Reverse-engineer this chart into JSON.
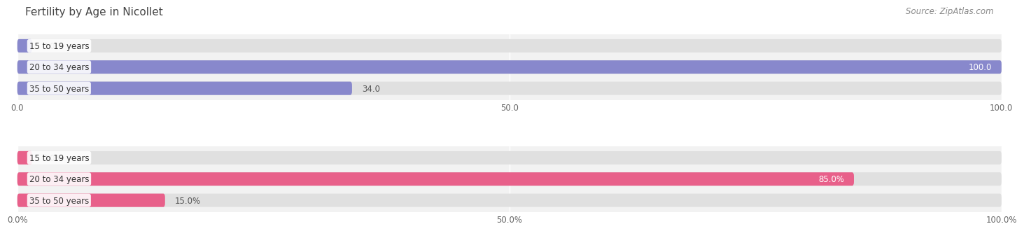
{
  "title": "Fertility by Age in Nicollet",
  "source": "Source: ZipAtlas.com",
  "top_chart": {
    "categories": [
      "15 to 19 years",
      "20 to 34 years",
      "35 to 50 years"
    ],
    "values": [
      0.0,
      100.0,
      34.0
    ],
    "bar_color": "#8888cc",
    "xlim": [
      0,
      100
    ],
    "xticks": [
      0.0,
      50.0,
      100.0
    ],
    "xtick_labels": [
      "0.0",
      "50.0",
      "100.0"
    ]
  },
  "bottom_chart": {
    "categories": [
      "15 to 19 years",
      "20 to 34 years",
      "35 to 50 years"
    ],
    "values": [
      0.0,
      85.0,
      15.0
    ],
    "bar_color": "#e8608a",
    "xlim": [
      0,
      100
    ],
    "xticks": [
      0.0,
      50.0,
      100.0
    ],
    "xtick_labels": [
      "0.0%",
      "50.0%",
      "100.0%"
    ]
  },
  "bg_color": "#f2f2f2",
  "bar_bg_color": "#e0e0e0",
  "title_fontsize": 11,
  "source_fontsize": 8.5,
  "label_fontsize": 8.5,
  "value_fontsize": 8.5
}
